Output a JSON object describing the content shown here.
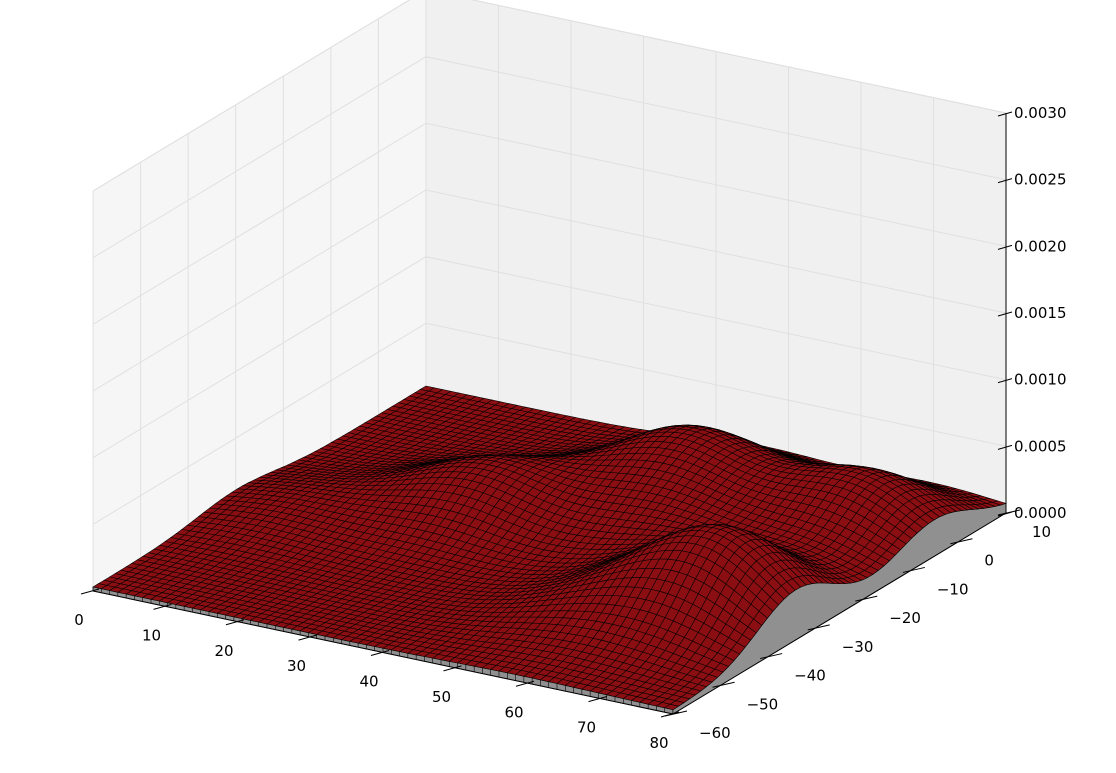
{
  "chart_data": {
    "type": "surface3d",
    "title": "",
    "xlabel": "",
    "ylabel": "",
    "zlabel": "",
    "xlim": [
      0,
      80
    ],
    "ylim": [
      -60,
      10
    ],
    "zlim": [
      0,
      0.003
    ],
    "x_ticks": [
      "0",
      "10",
      "20",
      "30",
      "40",
      "50",
      "60",
      "70",
      "80"
    ],
    "y_ticks": [
      "10",
      "0",
      "−10",
      "−20",
      "−30",
      "−40",
      "−50",
      "−60"
    ],
    "z_ticks": [
      "0.0000",
      "0.0005",
      "0.0010",
      "0.0015",
      "0.0020",
      "0.0025",
      "0.0030"
    ],
    "grid": true,
    "surface": {
      "description_type": "sum of gaussian bumps",
      "baseline_z": 3e-05,
      "peaks": [
        {
          "x": 28,
          "y": -20,
          "z": 0.00037
        },
        {
          "x": 52,
          "y": -18,
          "z": 0.00022
        },
        {
          "x": 46,
          "y": -5,
          "z": 0.00048
        },
        {
          "x": 70,
          "y": -34,
          "z": 0.00063
        },
        {
          "x": 70,
          "y": -5,
          "z": 0.00045
        },
        {
          "x": 58,
          "y": -42,
          "z": 0.00018
        },
        {
          "x": 8,
          "y": -30,
          "z": 0.00012
        }
      ]
    },
    "colors": {
      "surface_face": "#8b0f12",
      "edge": "#000000",
      "side_wall": "#909090",
      "pane_left": "#f6f6f6",
      "pane_back": "#f0f0f0",
      "pane_floor": "#ececec",
      "gridline": "#e0e0e0"
    }
  }
}
